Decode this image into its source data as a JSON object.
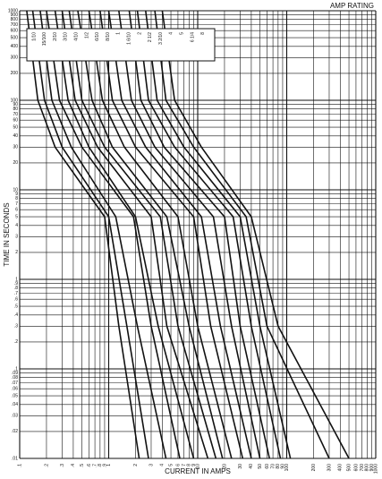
{
  "chart_data": {
    "type": "line",
    "title": "AMP RATING",
    "x_label": "CURRENT IN AMPS",
    "y_label": "TIME IN SECONDS",
    "xscale": "log",
    "yscale": "log",
    "grid": true,
    "xlim": [
      0.1,
      1000
    ],
    "ylim": [
      0.01,
      1000
    ],
    "xticks": [
      {
        "value": 0.1,
        "label": ".1"
      },
      {
        "value": 0.2,
        "label": ".2"
      },
      {
        "value": 0.3,
        "label": ".3"
      },
      {
        "value": 0.4,
        "label": ".4"
      },
      {
        "value": 0.5,
        "label": ".5"
      },
      {
        "value": 0.6,
        "label": ".6"
      },
      {
        "value": 0.7,
        "label": ".7"
      },
      {
        "value": 0.8,
        "label": ".8"
      },
      {
        "value": 0.9,
        "label": ".9"
      },
      1,
      2,
      3,
      4,
      5,
      6,
      7,
      8,
      9,
      10,
      20,
      30,
      40,
      50,
      60,
      70,
      80,
      90,
      100,
      200,
      300,
      400,
      500,
      600,
      700,
      800,
      900,
      1000
    ],
    "yticks": [
      {
        "value": 0.01,
        "label": ".01"
      },
      {
        "value": 0.02,
        "label": ".02"
      },
      {
        "value": 0.03,
        "label": ".03"
      },
      {
        "value": 0.04,
        "label": ".04"
      },
      {
        "value": 0.05,
        "label": ".05"
      },
      {
        "value": 0.06,
        "label": ".06"
      },
      {
        "value": 0.07,
        "label": ".07"
      },
      {
        "value": 0.08,
        "label": ".08"
      },
      {
        "value": 0.09,
        "label": ".09"
      },
      {
        "value": 0.1,
        "label": ".1"
      },
      {
        "value": 0.2,
        "label": ".2"
      },
      {
        "value": 0.3,
        "label": ".3"
      },
      {
        "value": 0.4,
        "label": ".4"
      },
      {
        "value": 0.5,
        "label": ".5"
      },
      {
        "value": 0.6,
        "label": ".6"
      },
      {
        "value": 0.7,
        "label": ".7"
      },
      {
        "value": 0.8,
        "label": ".8"
      },
      {
        "value": 0.9,
        "label": ".9"
      },
      1,
      2,
      3,
      4,
      5,
      6,
      7,
      8,
      9,
      10,
      20,
      30,
      40,
      50,
      60,
      70,
      80,
      90,
      100,
      200,
      300,
      400,
      500,
      600,
      700,
      800,
      900,
      1000
    ],
    "series": [
      {
        "name": "1/10",
        "color": "#111111",
        "x": [
          0.12,
          0.16,
          0.25,
          0.9,
          1.3,
          2.2
        ],
        "values": [
          1000,
          100,
          30,
          5,
          0.3,
          0.01
        ]
      },
      {
        "name": "15/100",
        "color": "#111111",
        "x": [
          0.14,
          0.19,
          0.3,
          1.0,
          1.6,
          2.8
        ],
        "values": [
          1000,
          100,
          30,
          5,
          0.3,
          0.01
        ]
      },
      {
        "name": "2/10",
        "color": "#111111",
        "x": [
          0.17,
          0.23,
          0.38,
          1.2,
          2.1,
          4.4
        ],
        "values": [
          1000,
          100,
          30,
          5,
          0.3,
          0.01
        ]
      },
      {
        "name": "3/10",
        "color": "#111111",
        "x": [
          0.2,
          0.28,
          0.5,
          1.9,
          3,
          6.3
        ],
        "values": [
          1000,
          100,
          30,
          5,
          0.3,
          0.01
        ]
      },
      {
        "name": "4/10",
        "color": "#111111",
        "x": [
          0.25,
          0.35,
          0.6,
          2.0,
          3.6,
          9
        ],
        "values": [
          1000,
          100,
          30,
          5,
          0.3,
          0.01
        ]
      },
      {
        "name": "1/2",
        "color": "#111111",
        "x": [
          0.3,
          0.42,
          0.75,
          3,
          4.5,
          13
        ],
        "values": [
          1000,
          100,
          30,
          5,
          0.3,
          0.01
        ]
      },
      {
        "name": "6/10",
        "color": "#111111",
        "x": [
          0.36,
          0.5,
          0.9,
          3.8,
          6,
          16
        ],
        "values": [
          1000,
          100,
          30,
          5,
          0.3,
          0.01
        ]
      },
      {
        "name": "8/10",
        "color": "#111111",
        "x": [
          0.45,
          0.65,
          1.1,
          4.5,
          8,
          19
        ],
        "values": [
          1000,
          100,
          30,
          5,
          0.3,
          0.01
        ]
      },
      {
        "name": "1",
        "color": "#111111",
        "x": [
          0.6,
          0.85,
          1.5,
          6,
          10,
          24
        ],
        "values": [
          1000,
          100,
          30,
          5,
          0.3,
          0.01
        ]
      },
      {
        "name": "1 6/10",
        "color": "#111111",
        "x": [
          0.8,
          1.1,
          2,
          9,
          14,
          32
        ],
        "values": [
          1000,
          100,
          30,
          5,
          0.3,
          0.01
        ]
      },
      {
        "name": "2",
        "color": "#111111",
        "x": [
          1.0,
          1.4,
          2.6,
          11,
          18,
          40
        ],
        "values": [
          1000,
          100,
          30,
          5,
          0.3,
          0.01
        ]
      },
      {
        "name": "2 1/2",
        "color": "#111111",
        "x": [
          1.3,
          1.8,
          3.3,
          15,
          24,
          50
        ],
        "values": [
          1000,
          100,
          30,
          5,
          0.3,
          0.01
        ]
      },
      {
        "name": "3 2/10",
        "color": "#111111",
        "x": [
          1.7,
          2.3,
          4.2,
          20,
          30,
          64
        ],
        "values": [
          1000,
          100,
          30,
          5,
          0.3,
          0.01
        ]
      },
      {
        "name": "4",
        "color": "#111111",
        "x": [
          2.1,
          2.8,
          5.5,
          25,
          40,
          85
        ],
        "values": [
          1000,
          100,
          30,
          5,
          0.3,
          0.01
        ]
      },
      {
        "name": "5",
        "color": "#111111",
        "x": [
          2.6,
          3.5,
          7,
          30,
          50,
          110
        ],
        "values": [
          1000,
          100,
          30,
          5,
          0.3,
          0.01
        ]
      },
      {
        "name": "6 1/4",
        "color": "#111111",
        "x": [
          3.3,
          4.4,
          9,
          35,
          60,
          300
        ],
        "values": [
          1000,
          100,
          30,
          5,
          0.3,
          0.01
        ]
      },
      {
        "name": "8",
        "color": "#111111",
        "x": [
          4,
          5.5,
          11,
          40,
          80,
          500
        ],
        "values": [
          1000,
          100,
          30,
          5,
          0.3,
          0.01
        ]
      }
    ]
  }
}
